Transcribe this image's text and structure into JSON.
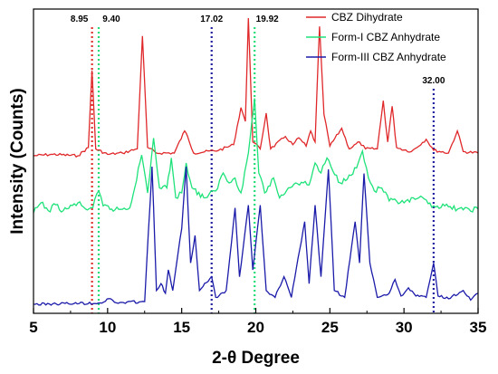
{
  "chart_data": {
    "type": "line",
    "xlabel": "2-θ Degree",
    "ylabel": "Intensity (Counts)",
    "xlim": [
      5,
      35
    ],
    "x_ticks": [
      "5",
      "10",
      "15",
      "20",
      "25",
      "30",
      "35"
    ],
    "grid": false,
    "legend_position": "top-right",
    "reference_lines": [
      {
        "x": 8.95,
        "label": "8.95",
        "color": "#e03030"
      },
      {
        "x": 9.4,
        "label": "9.40",
        "color": "#22dd77"
      },
      {
        "x": 17.02,
        "label": "17.02",
        "color": "#2020a0"
      },
      {
        "x": 19.92,
        "label": "19.92",
        "color": "#22dd77"
      },
      {
        "x": 32.0,
        "label": "32.00",
        "color": "#2020a0"
      }
    ],
    "series": [
      {
        "name": "CBZ Dihydrate",
        "color": "#e0282a",
        "baseline": 0.0,
        "points": [
          [
            5,
            0
          ],
          [
            6.3,
            0.01
          ],
          [
            8,
            0
          ],
          [
            8.7,
            0.06
          ],
          [
            8.95,
            0.62
          ],
          [
            9.2,
            0.05
          ],
          [
            10,
            0.01
          ],
          [
            11,
            0.02
          ],
          [
            12,
            0.05
          ],
          [
            12.35,
            0.87
          ],
          [
            12.7,
            0.06
          ],
          [
            13.3,
            0.02
          ],
          [
            14.5,
            0.02
          ],
          [
            15.2,
            0.18
          ],
          [
            15.4,
            0.14
          ],
          [
            15.8,
            0.02
          ],
          [
            17.5,
            0.04
          ],
          [
            18.5,
            0.08
          ],
          [
            19.0,
            0.35
          ],
          [
            19.3,
            0.25
          ],
          [
            19.5,
            1.0
          ],
          [
            19.8,
            0.1
          ],
          [
            20.3,
            0.05
          ],
          [
            20.7,
            0.31
          ],
          [
            21.0,
            0.05
          ],
          [
            22.0,
            0.14
          ],
          [
            22.5,
            0.08
          ],
          [
            22.9,
            0.13
          ],
          [
            23.4,
            0.07
          ],
          [
            23.7,
            0.18
          ],
          [
            24.0,
            0.1
          ],
          [
            24.3,
            0.94
          ],
          [
            24.6,
            0.3
          ],
          [
            25.0,
            0.07
          ],
          [
            25.8,
            0.2
          ],
          [
            26.3,
            0.05
          ],
          [
            27.0,
            0.1
          ],
          [
            27.4,
            0.05
          ],
          [
            28.2,
            0.05
          ],
          [
            28.6,
            0.4
          ],
          [
            28.9,
            0.1
          ],
          [
            29.2,
            0.36
          ],
          [
            29.5,
            0.06
          ],
          [
            30.5,
            0.03
          ],
          [
            31.5,
            0.12
          ],
          [
            32.0,
            0.04
          ],
          [
            33.0,
            0.02
          ],
          [
            33.6,
            0.18
          ],
          [
            34.0,
            0.03
          ],
          [
            35,
            0.02
          ]
        ]
      },
      {
        "name": "Form-I CBZ Anhydrate",
        "color": "#1ee27a",
        "baseline": 0.0,
        "points": [
          [
            5,
            0
          ],
          [
            5.5,
            0.1
          ],
          [
            6,
            0.02
          ],
          [
            6.5,
            0.08
          ],
          [
            7,
            0.02
          ],
          [
            8,
            0.1
          ],
          [
            8.5,
            0.04
          ],
          [
            9.0,
            0.05
          ],
          [
            9.4,
            0.22
          ],
          [
            9.7,
            0.07
          ],
          [
            10.5,
            0.03
          ],
          [
            11.5,
            0.05
          ],
          [
            12.3,
            0.58
          ],
          [
            12.7,
            0.2
          ],
          [
            13.1,
            0.75
          ],
          [
            13.5,
            0.25
          ],
          [
            14.0,
            0.25
          ],
          [
            14.3,
            0.55
          ],
          [
            14.6,
            0.15
          ],
          [
            15.0,
            0.2
          ],
          [
            15.3,
            0.5
          ],
          [
            15.7,
            0.25
          ],
          [
            16.5,
            0.15
          ],
          [
            17.3,
            0.22
          ],
          [
            17.8,
            0.4
          ],
          [
            18.2,
            0.3
          ],
          [
            18.6,
            0.35
          ],
          [
            19.0,
            0.2
          ],
          [
            19.5,
            0.6
          ],
          [
            19.92,
            1.15
          ],
          [
            20.2,
            0.4
          ],
          [
            20.6,
            0.2
          ],
          [
            21.2,
            0.35
          ],
          [
            21.6,
            0.15
          ],
          [
            22.2,
            0.25
          ],
          [
            22.7,
            0.3
          ],
          [
            23.2,
            0.3
          ],
          [
            23.6,
            0.28
          ],
          [
            24.0,
            0.5
          ],
          [
            24.4,
            0.4
          ],
          [
            24.8,
            0.55
          ],
          [
            25.2,
            0.42
          ],
          [
            25.7,
            0.3
          ],
          [
            26.3,
            0.38
          ],
          [
            26.8,
            0.45
          ],
          [
            27.2,
            0.62
          ],
          [
            27.6,
            0.35
          ],
          [
            28.0,
            0.22
          ],
          [
            28.5,
            0.25
          ],
          [
            29.0,
            0.12
          ],
          [
            30.0,
            0.1
          ],
          [
            31.0,
            0.15
          ],
          [
            32.0,
            0.07
          ],
          [
            33.0,
            0.06
          ],
          [
            34.0,
            0.03
          ],
          [
            35,
            0.04
          ]
        ]
      },
      {
        "name": "Form-III CBZ Anhydrate",
        "color": "#1b1baa",
        "baseline": 0.0,
        "points": [
          [
            5,
            0
          ],
          [
            9.5,
            0.01
          ],
          [
            10.2,
            0.04
          ],
          [
            10.6,
            0.01
          ],
          [
            12.5,
            0.02
          ],
          [
            13.0,
            1.0
          ],
          [
            13.3,
            0.1
          ],
          [
            13.6,
            0.15
          ],
          [
            13.9,
            0.08
          ],
          [
            14.1,
            0.25
          ],
          [
            14.4,
            0.1
          ],
          [
            15.0,
            0.55
          ],
          [
            15.3,
            1.0
          ],
          [
            15.6,
            0.3
          ],
          [
            15.9,
            0.5
          ],
          [
            16.2,
            0.1
          ],
          [
            17.02,
            0.2
          ],
          [
            17.3,
            0.05
          ],
          [
            18.0,
            0.1
          ],
          [
            18.6,
            0.7
          ],
          [
            18.9,
            0.2
          ],
          [
            19.5,
            0.72
          ],
          [
            19.8,
            0.25
          ],
          [
            20.3,
            0.72
          ],
          [
            20.7,
            0.1
          ],
          [
            21.3,
            0.05
          ],
          [
            21.9,
            0.2
          ],
          [
            22.4,
            0.05
          ],
          [
            23.3,
            0.6
          ],
          [
            23.6,
            0.15
          ],
          [
            24.0,
            0.72
          ],
          [
            24.4,
            0.2
          ],
          [
            24.9,
            0.98
          ],
          [
            25.3,
            0.1
          ],
          [
            26.0,
            0.05
          ],
          [
            26.7,
            0.6
          ],
          [
            27.0,
            0.3
          ],
          [
            27.3,
            0.95
          ],
          [
            27.7,
            0.3
          ],
          [
            28.2,
            0.05
          ],
          [
            29.0,
            0.08
          ],
          [
            29.4,
            0.18
          ],
          [
            29.8,
            0.06
          ],
          [
            30.3,
            0.12
          ],
          [
            30.8,
            0.06
          ],
          [
            31.5,
            0.05
          ],
          [
            32.0,
            0.3
          ],
          [
            32.3,
            0.06
          ],
          [
            33.0,
            0.04
          ],
          [
            34.0,
            0.1
          ],
          [
            34.5,
            0.03
          ],
          [
            35,
            0.08
          ]
        ]
      }
    ]
  }
}
